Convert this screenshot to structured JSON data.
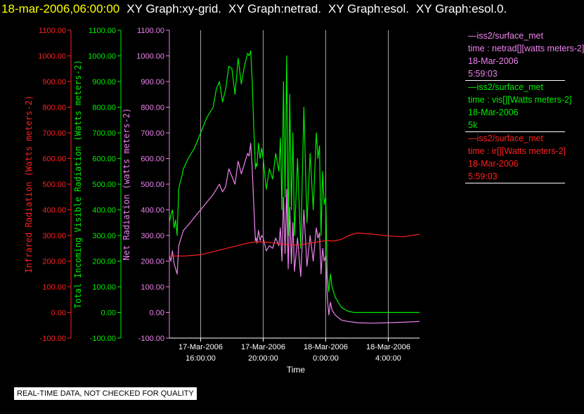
{
  "header": {
    "date_label": "18-mar-2006,06:00:00",
    "graph_titles": [
      "XY Graph:xy-grid.",
      "XY Graph:netrad.",
      "XY Graph:esol.",
      "XY Graph:esol.0."
    ]
  },
  "legend": [
    {
      "source": "iss2/surface_met",
      "field": "time : netrad[][watts meters-2]",
      "date": "18-Mar-2006",
      "extra": "5:59:03",
      "color": "#ee82ee"
    },
    {
      "source": "iss2/surface_met",
      "field": "time : vis[][Watts meters-2]",
      "date": "18-Mar-2006",
      "extra": "5k",
      "color": "#00ee00"
    },
    {
      "source": "iss2/surface_met",
      "field": "time : ir[][Watts meters-2]",
      "date": "18-Mar-2006",
      "extra": "5:59:03",
      "color": "#ff2020"
    }
  ],
  "footer": {
    "quality_note": "REAL-TIME DATA, NOT CHECKED FOR QUALITY"
  },
  "chart_data": {
    "type": "line",
    "xlabel": "Time",
    "x_ticks": [
      {
        "hours": 16,
        "line1": "17-Mar-2006",
        "line2": "16:00:00"
      },
      {
        "hours": 20,
        "line1": "17-Mar-2006",
        "line2": "20:00:00"
      },
      {
        "hours": 24,
        "line1": "18-Mar-2006",
        "line2": "0:00:00"
      },
      {
        "hours": 28,
        "line1": "18-Mar-2006",
        "line2": "4:00:00"
      }
    ],
    "xlim_hours_from_17mar_0000": [
      14.0,
      30.0
    ],
    "grid": true,
    "axes": [
      {
        "label": "Infrared Radiation (Watts meters-2)",
        "color": "#ff2020",
        "ylim": [
          -100,
          1100
        ],
        "ticks": [
          "1100.00",
          "1000.00",
          "900.00",
          "800.00",
          "700.00",
          "600.00",
          "500.00",
          "400.00",
          "300.00",
          "200.00",
          "100.00",
          "0.00",
          "-100.00"
        ]
      },
      {
        "label": "Total Incoming Visible Radiation (Watts meters-2)",
        "color": "#00ee00",
        "ylim": [
          -100,
          1100
        ],
        "ticks": [
          "1100.00",
          "1000.00",
          "900.00",
          "800.00",
          "700.00",
          "600.00",
          "500.00",
          "400.00",
          "300.00",
          "200.00",
          "100.00",
          "0.00",
          "-100.00"
        ]
      },
      {
        "label": "Net Radiation (watts meters-2)",
        "color": "#ee82ee",
        "ylim": [
          -100,
          1100
        ],
        "ticks": [
          "1100.00",
          "1000.00",
          "900.00",
          "800.00",
          "700.00",
          "600.00",
          "500.00",
          "400.00",
          "300.00",
          "200.00",
          "100.00",
          "0.00",
          "-100.00"
        ]
      }
    ],
    "series": [
      {
        "name": "time : vis[][Watts meters-2]",
        "color": "#00ee00",
        "x": [
          14.0,
          14.1,
          14.2,
          14.3,
          14.4,
          14.5,
          14.6,
          14.7,
          14.8,
          14.9,
          15.2,
          15.6,
          16.0,
          16.4,
          16.8,
          17.0,
          17.2,
          17.4,
          17.6,
          17.8,
          18.0,
          18.2,
          18.4,
          18.6,
          18.8,
          19.0,
          19.1,
          19.2,
          19.3,
          19.4,
          19.5,
          19.55,
          19.6,
          19.7,
          19.8,
          19.9,
          20.0,
          20.2,
          20.4,
          20.6,
          20.8,
          21.0,
          21.1,
          21.2,
          21.3,
          21.4,
          21.5,
          21.6,
          21.7,
          21.8,
          21.9,
          22.0,
          22.2,
          22.4,
          22.6,
          22.8,
          23.0,
          23.2,
          23.4,
          23.5,
          23.6,
          23.7,
          23.8,
          23.9,
          24.0,
          24.1,
          24.2,
          24.3,
          24.4,
          24.6,
          24.8,
          25.0,
          25.4,
          25.8,
          26.0,
          27.0,
          28.0,
          29.0,
          30.0
        ],
        "y": [
          350,
          380,
          400,
          330,
          360,
          300,
          480,
          510,
          530,
          560,
          600,
          640,
          700,
          760,
          800,
          870,
          900,
          820,
          870,
          960,
          950,
          850,
          990,
          890,
          960,
          1010,
          1000,
          1020,
          900,
          720,
          560,
          580,
          570,
          660,
          600,
          640,
          600,
          480,
          560,
          520,
          620,
          550,
          680,
          400,
          900,
          450,
          1000,
          300,
          850,
          400,
          700,
          300,
          600,
          250,
          800,
          350,
          620,
          400,
          700,
          600,
          650,
          300,
          550,
          420,
          450,
          150,
          80,
          150,
          100,
          60,
          40,
          20,
          5,
          0,
          0,
          0,
          0,
          0,
          0
        ]
      },
      {
        "name": "time : netrad[][watts meters-2]",
        "color": "#ee82ee",
        "x": [
          14.0,
          14.1,
          14.2,
          14.3,
          14.4,
          14.5,
          14.6,
          14.7,
          14.8,
          14.9,
          15.2,
          15.6,
          16.0,
          16.4,
          16.8,
          17.0,
          17.2,
          17.4,
          17.6,
          17.8,
          18.0,
          18.2,
          18.4,
          18.6,
          18.8,
          19.0,
          19.1,
          19.2,
          19.3,
          19.4,
          19.5,
          19.55,
          19.6,
          19.7,
          19.8,
          19.9,
          20.0,
          20.2,
          20.4,
          20.6,
          20.8,
          21.0,
          21.1,
          21.2,
          21.3,
          21.4,
          21.5,
          21.6,
          21.7,
          21.8,
          21.9,
          22.0,
          22.2,
          22.4,
          22.6,
          22.8,
          23.0,
          23.2,
          23.4,
          23.5,
          23.6,
          23.7,
          23.8,
          23.9,
          24.0,
          24.1,
          24.2,
          24.3,
          24.4,
          24.6,
          24.8,
          25.0,
          25.4,
          25.8,
          26.0,
          27.0,
          28.0,
          29.0,
          30.0
        ],
        "y": [
          220,
          200,
          240,
          190,
          170,
          150,
          260,
          280,
          300,
          320,
          340,
          370,
          400,
          430,
          460,
          480,
          500,
          470,
          490,
          560,
          530,
          500,
          590,
          540,
          580,
          620,
          610,
          660,
          560,
          420,
          280,
          290,
          270,
          320,
          280,
          300,
          290,
          240,
          260,
          250,
          290,
          260,
          330,
          200,
          450,
          230,
          480,
          170,
          410,
          190,
          350,
          160,
          290,
          140,
          400,
          180,
          300,
          200,
          330,
          290,
          310,
          150,
          250,
          200,
          220,
          60,
          -10,
          40,
          10,
          -10,
          -20,
          -30,
          -35,
          -38,
          -40,
          -42,
          -40,
          -38,
          -35
        ]
      },
      {
        "name": "time : ir[][Watts meters-2]",
        "color": "#ff2020",
        "x": [
          14.0,
          15.0,
          16.0,
          17.0,
          18.0,
          19.0,
          19.5,
          20.0,
          20.5,
          21.0,
          21.5,
          22.0,
          22.5,
          23.0,
          23.5,
          24.0,
          24.5,
          25.0,
          25.5,
          26.0,
          27.0,
          28.0,
          29.0,
          30.0
        ],
        "y": [
          220,
          220,
          225,
          240,
          255,
          270,
          275,
          275,
          272,
          268,
          265,
          262,
          265,
          270,
          275,
          280,
          278,
          285,
          300,
          310,
          305,
          298,
          295,
          305
        ]
      }
    ]
  }
}
